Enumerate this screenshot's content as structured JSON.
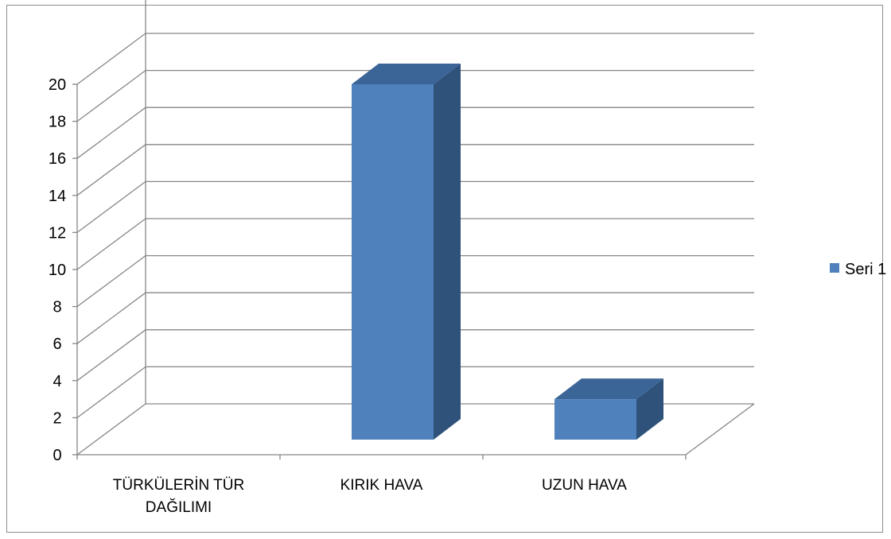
{
  "chart_data": {
    "type": "bar",
    "style": "3d-column",
    "categories": [
      "TÜRKÜLERİN TÜR DAĞILIMI",
      "KIRIK HAVA",
      "UZUN HAVA"
    ],
    "category_label_lines": [
      [
        "TÜRKÜLERİN TÜR",
        "DAĞILIMI"
      ],
      [
        "KIRIK HAVA"
      ],
      [
        "UZUN HAVA"
      ]
    ],
    "series": [
      {
        "name": "Seri 1",
        "values": [
          null,
          20,
          3
        ],
        "color": "#4F81BD",
        "side_color": "#2F527A",
        "top_color": "#3B6497"
      }
    ],
    "yticks": [
      0,
      2,
      4,
      6,
      8,
      10,
      12,
      14,
      16,
      18,
      20
    ],
    "ylim": [
      0,
      22
    ],
    "title": "",
    "xlabel": "",
    "ylabel": "",
    "grid": true,
    "legend_position": "right",
    "colors": {
      "grid": "#868686",
      "axis": "#868686",
      "frame": "#8c8c8c"
    }
  }
}
